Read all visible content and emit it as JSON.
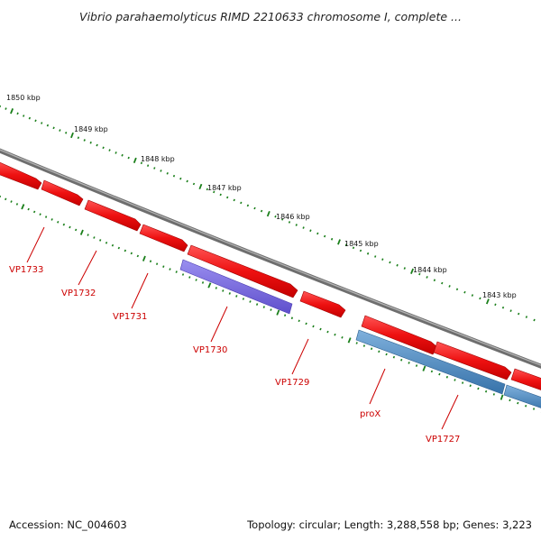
{
  "title": "Vibrio parahaemolyticus RIMD 2210633 chromosome I, complete ...",
  "footer": {
    "accession": "Accession: NC_004603",
    "summary": "Topology: circular; Length: 3,288,558 bp; Genes: 3,223"
  },
  "colors": {
    "backbone": "#888888",
    "cds_forward": "#ee1111",
    "gene_purple": "#7766dd",
    "gene_blue": "#4a88c0",
    "tick": "#1a7f1a",
    "label": "#cc0000"
  },
  "ticks": [
    "1850 kbp",
    "1849 kbp",
    "1848 kbp",
    "1847 kbp",
    "1846 kbp",
    "1845 kbp",
    "1844 kbp",
    "1843 kbp"
  ],
  "genes": [
    {
      "label": "VP1733"
    },
    {
      "label": "VP1732"
    },
    {
      "label": "VP1731"
    },
    {
      "label": "VP1730"
    },
    {
      "label": "VP1729"
    },
    {
      "label": "proX"
    },
    {
      "label": "VP1727"
    }
  ]
}
